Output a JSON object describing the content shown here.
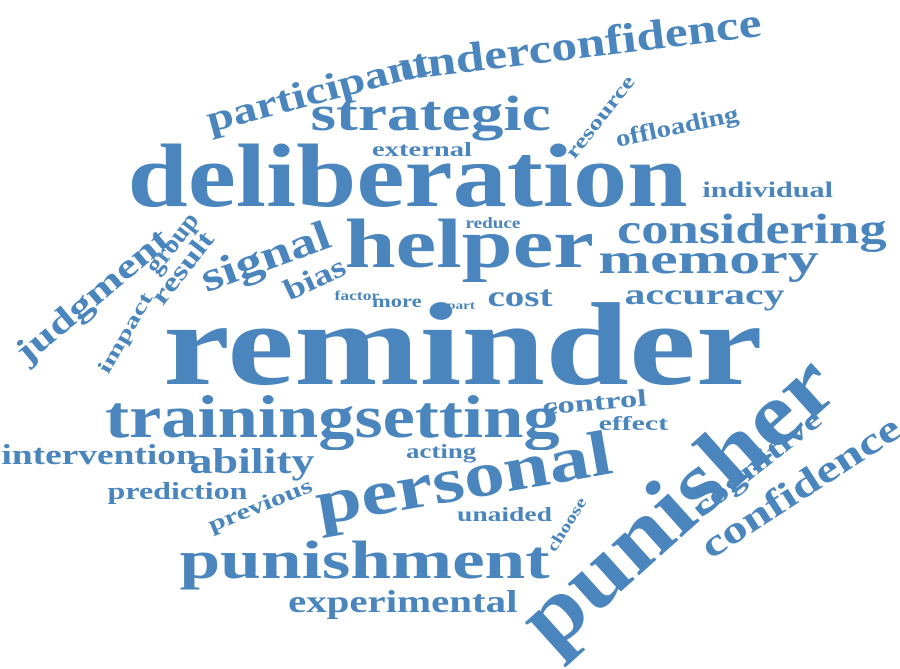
{
  "cloud": {
    "color": "#4a86bd",
    "words": [
      {
        "text": "reminder"
      },
      {
        "text": "deliberation"
      },
      {
        "text": "punisher"
      },
      {
        "text": "helper"
      },
      {
        "text": "personal"
      },
      {
        "text": "trainingsetting"
      },
      {
        "text": "punishment"
      },
      {
        "text": "strategic"
      },
      {
        "text": "underconfidence"
      },
      {
        "text": "considering"
      },
      {
        "text": "memory"
      },
      {
        "text": "confidence"
      },
      {
        "text": "participant"
      },
      {
        "text": "signal"
      },
      {
        "text": "judgment"
      },
      {
        "text": "ability"
      },
      {
        "text": "experimental"
      },
      {
        "text": "intervention"
      },
      {
        "text": "cognitive"
      },
      {
        "text": "accuracy"
      },
      {
        "text": "cost"
      },
      {
        "text": "bias"
      },
      {
        "text": "individual"
      },
      {
        "text": "offloading"
      },
      {
        "text": "resource"
      },
      {
        "text": "control"
      },
      {
        "text": "prediction"
      },
      {
        "text": "group"
      },
      {
        "text": "result"
      },
      {
        "text": "impact"
      },
      {
        "text": "external"
      },
      {
        "text": "previous"
      },
      {
        "text": "acting"
      },
      {
        "text": "effect"
      },
      {
        "text": "unaided"
      },
      {
        "text": "choose"
      },
      {
        "text": "reduce"
      },
      {
        "text": "more"
      },
      {
        "text": "factor"
      },
      {
        "text": "part"
      }
    ]
  }
}
